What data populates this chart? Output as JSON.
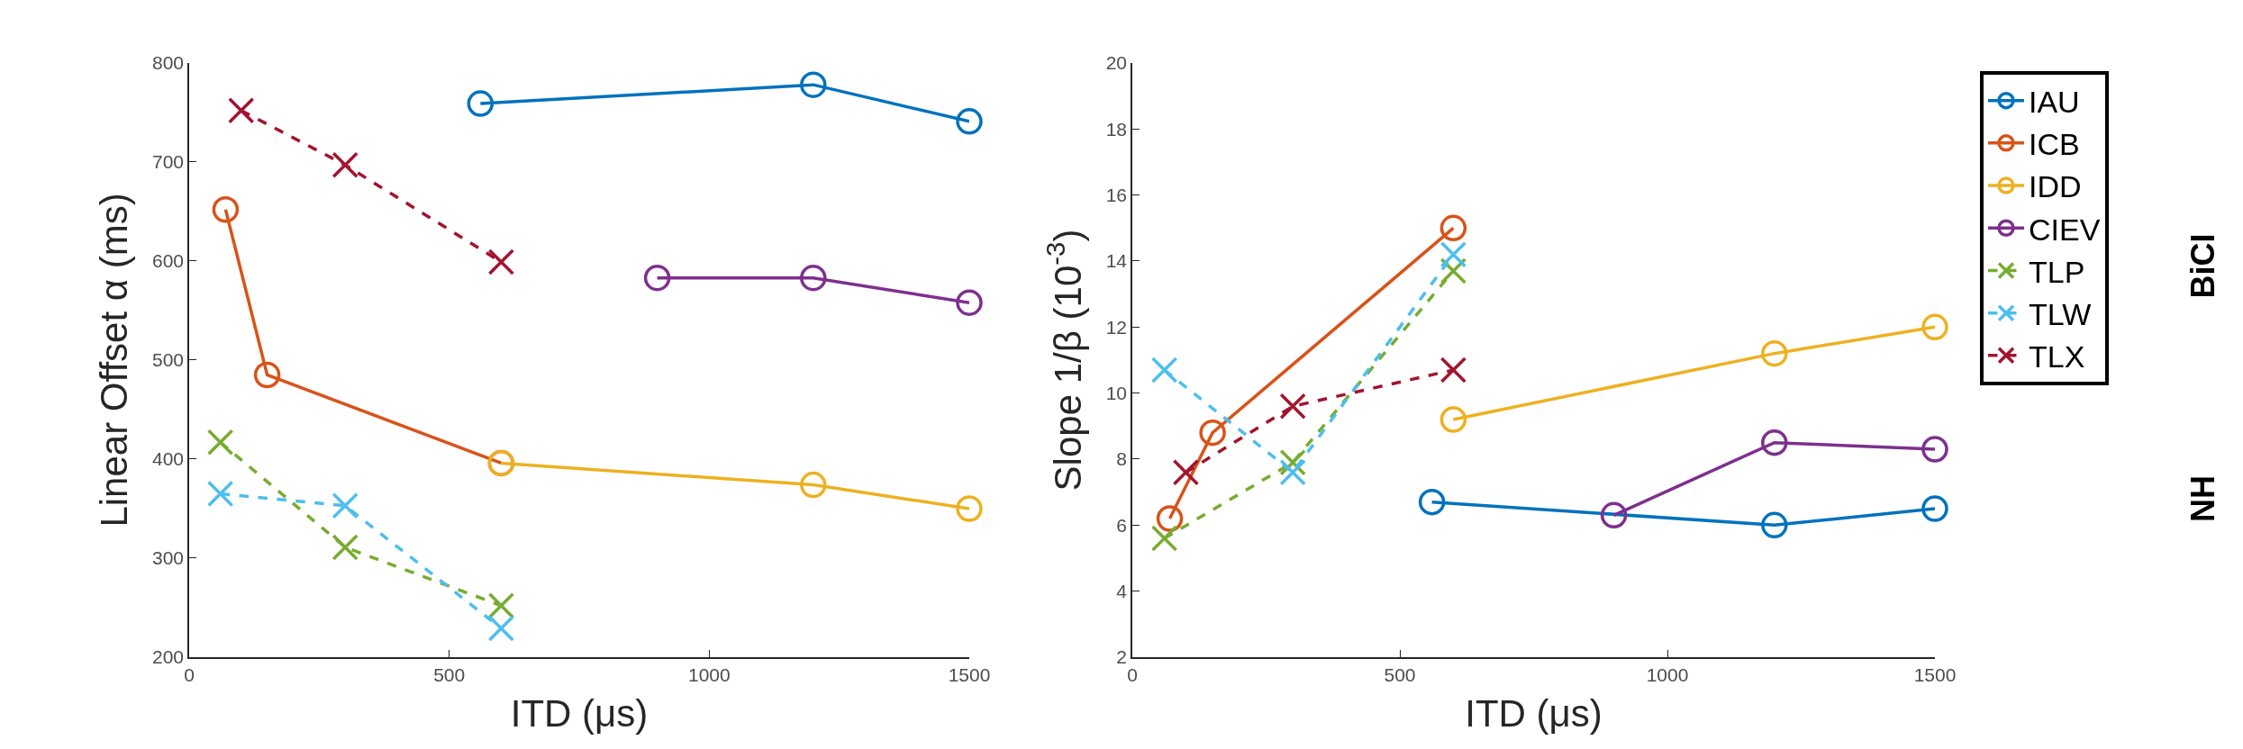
{
  "chart_data": [
    {
      "type": "line",
      "xlabel": "ITD (μs)",
      "ylabel": "Linear Offset α (ms)",
      "xlim": [
        0,
        1500
      ],
      "ylim": [
        200,
        800
      ],
      "xticks": [
        0,
        500,
        1000,
        1500
      ],
      "yticks": [
        200,
        300,
        400,
        500,
        600,
        700,
        800
      ],
      "legend": "right",
      "series": [
        {
          "name": "IAU",
          "color": "#0072bd",
          "marker": "circle",
          "line_style": "solid",
          "x": [
            560,
            1200,
            1500
          ],
          "values": [
            759,
            778,
            741
          ]
        },
        {
          "name": "ICB",
          "color": "#d95319",
          "marker": "circle",
          "line_style": "solid",
          "x": [
            70,
            150,
            600
          ],
          "values": [
            652,
            485,
            396
          ]
        },
        {
          "name": "IDD",
          "color": "#edb120",
          "marker": "circle",
          "line_style": "solid",
          "x": [
            600,
            1200,
            1500
          ],
          "values": [
            396,
            374,
            350
          ]
        },
        {
          "name": "CIEV",
          "color": "#7e2f8e",
          "marker": "circle",
          "line_style": "solid",
          "x": [
            900,
            1200,
            1500
          ],
          "values": [
            583,
            583,
            558
          ]
        },
        {
          "name": "TLP",
          "color": "#77ac30",
          "marker": "cross",
          "line_style": "dashed",
          "x": [
            60,
            300,
            600
          ],
          "values": [
            417,
            311,
            252
          ]
        },
        {
          "name": "TLW",
          "color": "#4dbeee",
          "marker": "cross",
          "line_style": "dashed",
          "x": [
            60,
            300,
            600
          ],
          "values": [
            365,
            353,
            229
          ]
        },
        {
          "name": "TLX",
          "color": "#a2142f",
          "marker": "cross",
          "line_style": "dashed",
          "x": [
            100,
            300,
            600
          ],
          "values": [
            752,
            697,
            599
          ]
        }
      ]
    },
    {
      "type": "line",
      "xlabel": "ITD (μs)",
      "ylabel": "Slope 1/β (10$^{-3}$)",
      "xlim": [
        0,
        1500
      ],
      "ylim": [
        2,
        20
      ],
      "xticks": [
        0,
        500,
        1000,
        1500
      ],
      "yticks": [
        2,
        4,
        6,
        8,
        10,
        12,
        14,
        16,
        18,
        20
      ],
      "annotations": [
        "BiCI",
        "NH"
      ],
      "series": [
        {
          "color": "#0072bd",
          "marker": "circle",
          "line_style": "solid",
          "x": [
            560,
            1200,
            1500
          ],
          "values": [
            6.7,
            6.0,
            6.5
          ]
        },
        {
          "color": "#d95319",
          "marker": "circle",
          "line_style": "solid",
          "x": [
            70,
            150,
            600
          ],
          "values": [
            6.2,
            8.8,
            15.0
          ]
        },
        {
          "color": "#edb120",
          "marker": "circle",
          "line_style": "solid",
          "x": [
            600,
            1200,
            1500
          ],
          "values": [
            9.2,
            11.2,
            12.0
          ]
        },
        {
          "color": "#7e2f8e",
          "marker": "circle",
          "line_style": "solid",
          "x": [
            900,
            1200,
            1500
          ],
          "values": [
            6.3,
            8.5,
            8.3
          ]
        },
        {
          "color": "#77ac30",
          "marker": "cross",
          "line_style": "dashed",
          "x": [
            60,
            300,
            600
          ],
          "values": [
            5.6,
            7.9,
            13.7
          ]
        },
        {
          "color": "#4dbeee",
          "marker": "cross",
          "line_style": "dashed",
          "x": [
            60,
            300,
            600
          ],
          "values": [
            10.7,
            7.6,
            14.2
          ]
        },
        {
          "color": "#a2142f",
          "marker": "cross",
          "line_style": "dashed",
          "x": [
            100,
            300,
            600
          ],
          "values": [
            7.6,
            9.6,
            10.7
          ]
        }
      ]
    }
  ]
}
